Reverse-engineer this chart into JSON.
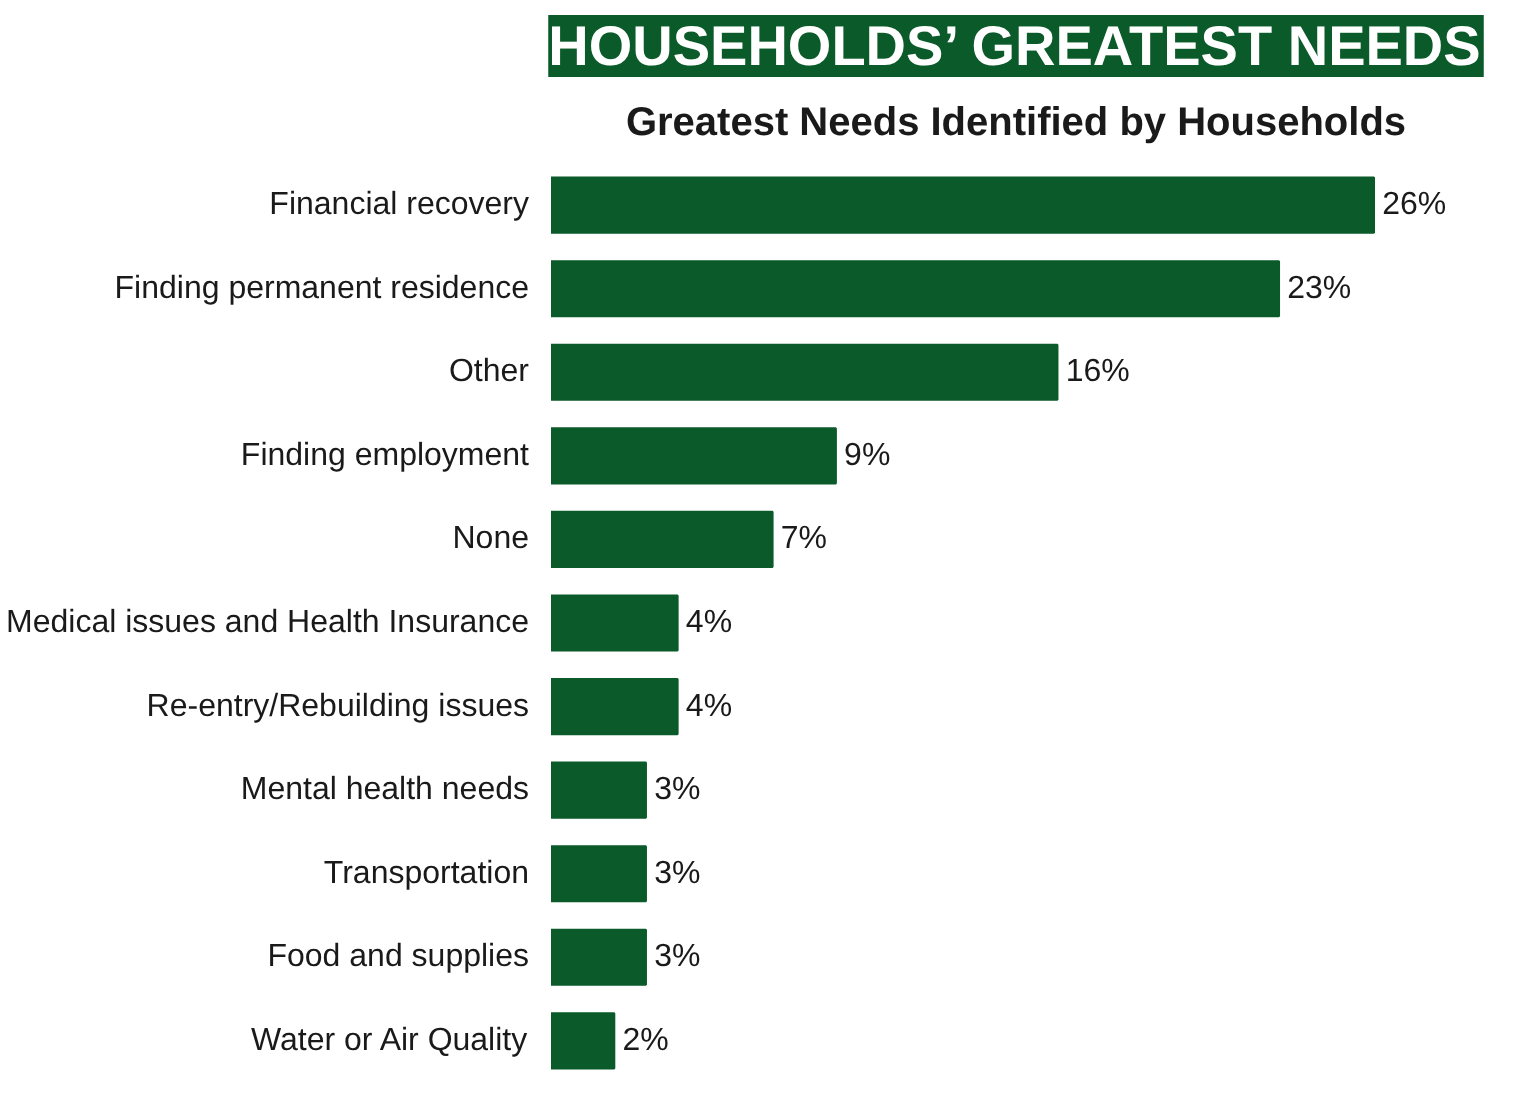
{
  "chart_data": {
    "type": "bar",
    "orientation": "horizontal",
    "title": "HOUSEHOLDS’ GREATEST NEEDS",
    "subtitle": "Greatest Needs Identified by Households",
    "categories": [
      "Financial recovery",
      "Finding permanent residence",
      "Other",
      "Finding employment",
      "None",
      "Medical issues and Health Insurance",
      "Re-entry/Rebuilding issues",
      "Mental health needs",
      "Transportation",
      "Food and supplies",
      "Water or Air Quality"
    ],
    "values": [
      26,
      23,
      16,
      9,
      7,
      4,
      4,
      3,
      3,
      3,
      2
    ],
    "value_labels": [
      "26%",
      "23%",
      "16%",
      "9%",
      "7%",
      "4%",
      "4%",
      "3%",
      "3%",
      "3%",
      "2%"
    ],
    "color": "#0b5a2a",
    "tick_labels": "y",
    "grid": false
  }
}
